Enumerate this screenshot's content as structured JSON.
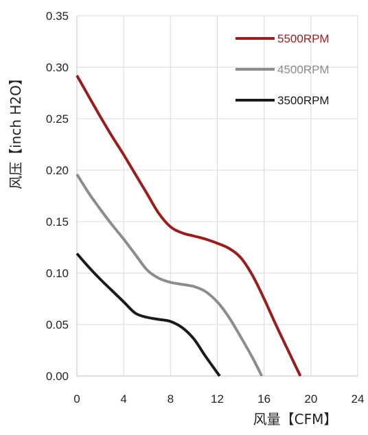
{
  "chart_data": {
    "type": "line",
    "xlabel": "风量【CFM】",
    "ylabel": "风压【inch H2O】",
    "xlim": [
      0,
      24
    ],
    "ylim": [
      0,
      0.35
    ],
    "xticks": [
      0,
      4,
      8,
      12,
      16,
      20,
      24
    ],
    "yticks": [
      0.0,
      0.05,
      0.1,
      0.15,
      0.2,
      0.25,
      0.3,
      0.35
    ],
    "ytick_labels": [
      "0.00",
      "0.05",
      "0.10",
      "0.15",
      "0.20",
      "0.25",
      "0.30",
      "0.35"
    ],
    "grid": true,
    "legend_position": "top-right",
    "series": [
      {
        "name": "5500RPM",
        "color": "#9b1c1c",
        "points": [
          [
            0,
            0.292
          ],
          [
            1,
            0.272
          ],
          [
            2,
            0.252
          ],
          [
            3,
            0.233
          ],
          [
            4,
            0.215
          ],
          [
            5,
            0.196
          ],
          [
            6,
            0.177
          ],
          [
            7,
            0.158
          ],
          [
            8,
            0.145
          ],
          [
            9,
            0.139
          ],
          [
            10,
            0.136
          ],
          [
            11,
            0.133
          ],
          [
            12,
            0.129
          ],
          [
            13,
            0.124
          ],
          [
            14,
            0.115
          ],
          [
            15,
            0.098
          ],
          [
            16,
            0.075
          ],
          [
            17,
            0.05
          ],
          [
            18,
            0.026
          ],
          [
            19.1,
            0.0
          ]
        ]
      },
      {
        "name": "4500RPM",
        "color": "#8c8c8c",
        "points": [
          [
            0,
            0.196
          ],
          [
            1,
            0.178
          ],
          [
            2,
            0.162
          ],
          [
            3,
            0.147
          ],
          [
            4,
            0.133
          ],
          [
            5,
            0.118
          ],
          [
            6,
            0.103
          ],
          [
            7,
            0.095
          ],
          [
            8,
            0.091
          ],
          [
            9,
            0.089
          ],
          [
            10,
            0.087
          ],
          [
            11,
            0.082
          ],
          [
            12,
            0.072
          ],
          [
            13,
            0.057
          ],
          [
            14,
            0.038
          ],
          [
            15,
            0.018
          ],
          [
            15.8,
            0.0
          ]
        ]
      },
      {
        "name": "3500RPM",
        "color": "#1a1a1a",
        "points": [
          [
            0,
            0.119
          ],
          [
            1,
            0.106
          ],
          [
            2,
            0.094
          ],
          [
            3,
            0.083
          ],
          [
            4,
            0.072
          ],
          [
            5,
            0.061
          ],
          [
            6,
            0.057
          ],
          [
            7,
            0.055
          ],
          [
            8,
            0.053
          ],
          [
            9,
            0.047
          ],
          [
            10,
            0.036
          ],
          [
            11,
            0.019
          ],
          [
            12.2,
            0.0
          ]
        ]
      }
    ]
  }
}
